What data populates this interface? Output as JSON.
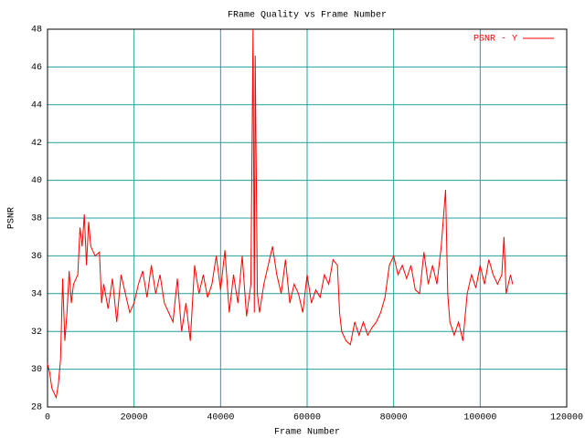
{
  "chart_data": {
    "type": "line",
    "title": "FRame Quality vs Frame Number",
    "x_label": "Frame Number",
    "y_label": "PSNR",
    "xlim": [
      0,
      120000
    ],
    "xticks": [
      0,
      20000,
      40000,
      60000,
      80000,
      100000,
      120000
    ],
    "ylim": [
      28,
      48
    ],
    "yticks": [
      28,
      30,
      32,
      34,
      36,
      38,
      40,
      42,
      44,
      46,
      48
    ],
    "grid": true,
    "grid_color": "#20a0a0",
    "legend": "top-right",
    "x": [
      0,
      500,
      1000,
      2000,
      2500,
      3000,
      3500,
      4000,
      4500,
      5000,
      5500,
      6000,
      7000,
      7500,
      8000,
      8500,
      9000,
      9500,
      10000,
      11000,
      12000,
      12500,
      13000,
      14000,
      15000,
      16000,
      17000,
      18000,
      19000,
      20000,
      21000,
      22000,
      23000,
      24000,
      25000,
      26000,
      27000,
      28000,
      29000,
      30000,
      31000,
      32000,
      33000,
      34000,
      35000,
      36000,
      37000,
      38000,
      39000,
      40000,
      41000,
      42000,
      43000,
      44000,
      45000,
      46000,
      47000,
      47500,
      47800,
      48000,
      48500,
      49000,
      50000,
      51000,
      52000,
      53000,
      54000,
      55000,
      56000,
      57000,
      58000,
      59000,
      60000,
      61000,
      62000,
      63000,
      64000,
      65000,
      66000,
      67000,
      67500,
      68000,
      69000,
      70000,
      71000,
      72000,
      73000,
      74000,
      75000,
      76000,
      77000,
      78000,
      79000,
      80000,
      81000,
      82000,
      83000,
      84000,
      85000,
      86000,
      87000,
      88000,
      89000,
      90000,
      91000,
      92000,
      92500,
      93000,
      94000,
      95000,
      96000,
      97000,
      98000,
      99000,
      100000,
      101000,
      102000,
      103000,
      104000,
      105000,
      105500,
      106000,
      107000,
      107500
    ],
    "series": [
      {
        "name": "PSNR - Y",
        "color": "#ff0000",
        "values": [
          30.3,
          29.8,
          29.0,
          28.5,
          29.2,
          30.5,
          34.8,
          31.5,
          33.0,
          35.2,
          33.5,
          34.5,
          35.0,
          37.5,
          36.5,
          38.2,
          35.5,
          37.8,
          36.5,
          36.0,
          36.2,
          33.5,
          34.5,
          33.2,
          34.8,
          32.5,
          35.0,
          34.0,
          33.0,
          33.5,
          34.5,
          35.2,
          33.8,
          35.5,
          34.0,
          35.0,
          33.5,
          33.0,
          32.5,
          34.8,
          32.0,
          33.5,
          31.5,
          35.5,
          34.0,
          35.0,
          33.8,
          34.5,
          36.0,
          34.2,
          36.3,
          33.0,
          35.0,
          33.5,
          36.0,
          32.8,
          34.5,
          48.0,
          33.0,
          46.6,
          34.0,
          33.0,
          34.5,
          35.5,
          36.5,
          35.0,
          34.0,
          35.8,
          33.5,
          34.5,
          34.0,
          33.0,
          35.0,
          33.5,
          34.2,
          33.8,
          35.0,
          34.5,
          35.8,
          35.5,
          33.0,
          32.0,
          31.5,
          31.3,
          32.5,
          31.8,
          32.5,
          31.8,
          32.2,
          32.5,
          33.0,
          33.8,
          35.5,
          36.0,
          35.0,
          35.5,
          34.8,
          35.5,
          34.2,
          34.0,
          36.2,
          34.5,
          35.5,
          34.5,
          36.5,
          39.5,
          34.0,
          32.5,
          31.8,
          32.5,
          31.5,
          34.0,
          35.0,
          34.3,
          35.5,
          34.5,
          35.8,
          35.0,
          34.5,
          35.0,
          37.0,
          34.0,
          35.0,
          34.5
        ]
      }
    ]
  }
}
